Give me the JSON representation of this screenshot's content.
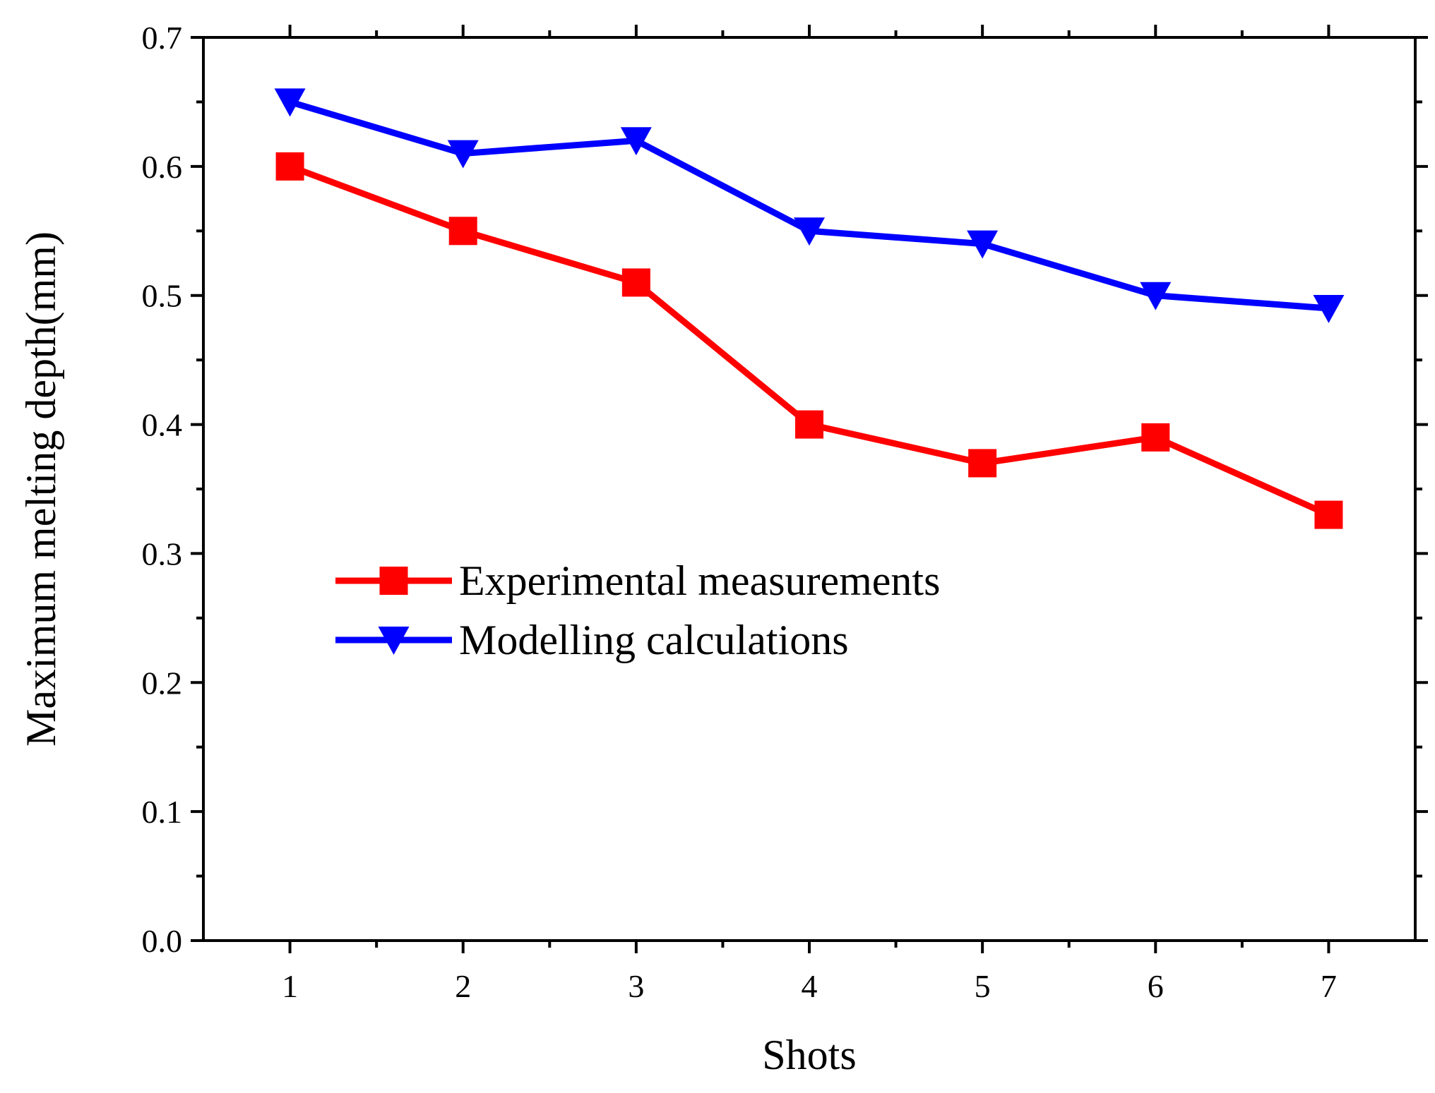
{
  "chart_data": {
    "type": "line",
    "title": "",
    "xlabel": "Shots",
    "ylabel": "Maximum melting depth(mm)",
    "x": [
      1,
      2,
      3,
      4,
      5,
      6,
      7
    ],
    "xlim": [
      0.5,
      7.5
    ],
    "ylim": [
      0.0,
      0.7
    ],
    "xticks": [
      1,
      2,
      3,
      4,
      5,
      6,
      7
    ],
    "yticks": [
      "0.0",
      "0.1",
      "0.2",
      "0.3",
      "0.4",
      "0.5",
      "0.6",
      "0.7"
    ],
    "grid": false,
    "legend_position": "center-left",
    "series": [
      {
        "name": "Experimental measurements",
        "color": "#ff0000",
        "marker": "square",
        "values": [
          0.6,
          0.55,
          0.51,
          0.4,
          0.37,
          0.39,
          0.33
        ]
      },
      {
        "name": "Modelling calculations",
        "color": "#0000ff",
        "marker": "triangle-down",
        "values": [
          0.65,
          0.61,
          0.62,
          0.55,
          0.54,
          0.5,
          0.49
        ]
      }
    ]
  }
}
